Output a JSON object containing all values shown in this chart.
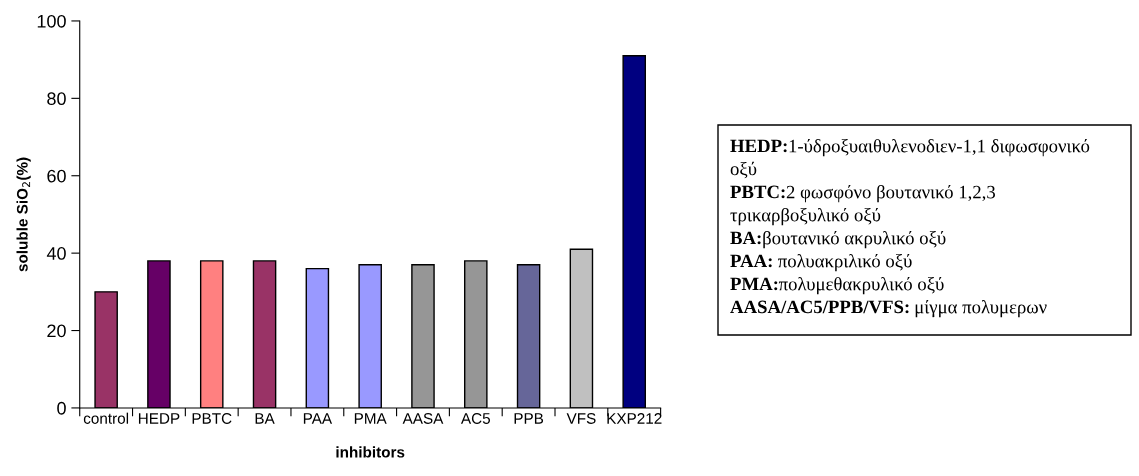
{
  "chart_data": {
    "type": "bar",
    "categories": [
      "control",
      "HEDP",
      "PBTC",
      "BA",
      "PAA",
      "PMA",
      "AASA",
      "AC5",
      "PPB",
      "VFS",
      "KXP212"
    ],
    "values": [
      30,
      38,
      38,
      38,
      36,
      37,
      37,
      38,
      37,
      41,
      91
    ],
    "colors": [
      "#993366",
      "#660066",
      "#ff8080",
      "#993366",
      "#9999ff",
      "#9999ff",
      "#969696",
      "#969696",
      "#666699",
      "#c0c0c0",
      "#000080"
    ],
    "ylim": [
      0,
      100
    ],
    "yticks": [
      0,
      20,
      40,
      60,
      80,
      100
    ],
    "xlabel": "inhibitors",
    "ylabel": "soluble SiO$_{2}$(%)",
    "grid": false,
    "legend": false,
    "annotations": [
      "HEDP:1-ύδροξυαιθυλενοδιεν-1,1 διφωσφονικό οξύ",
      "PBTC:2 φωσφόνο βουτανικό 1,2,3 τρικαρβοξυλικό οξύ",
      "BA:βουτανικό ακρυλικό οξύ",
      "PAA: πολυακριλικό οξύ",
      "PMA:πολυμεθακρυλικό οξύ",
      "AASA/AC5/PPB/VFS: μίγμα πολυμερων"
    ]
  }
}
